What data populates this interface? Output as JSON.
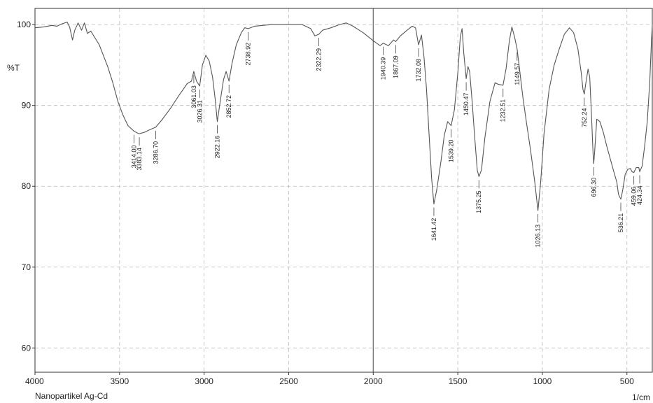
{
  "chart_data": {
    "type": "line",
    "ylabel": "%T",
    "xunit": "1/cm",
    "sample_label": "Nanopartikel Ag-Cd",
    "xlim": [
      4000,
      350
    ],
    "ylim": [
      57,
      102
    ],
    "xticks": [
      4000,
      3500,
      3000,
      2500,
      2000,
      1500,
      1000,
      500
    ],
    "yticks": [
      60,
      70,
      80,
      90,
      100
    ],
    "grid": true,
    "x_reversed": true,
    "colors": {
      "line": "#555555",
      "grid": "#bbbbbb",
      "axis": "#333333"
    },
    "series": [
      {
        "values": [
          [
            4000,
            99.6
          ],
          [
            3950,
            99.7
          ],
          [
            3900,
            99.9
          ],
          [
            3870,
            99.8
          ],
          [
            3840,
            100.1
          ],
          [
            3810,
            100.3
          ],
          [
            3795,
            99.7
          ],
          [
            3778,
            98.1
          ],
          [
            3765,
            99.3
          ],
          [
            3745,
            100.2
          ],
          [
            3725,
            99.3
          ],
          [
            3708,
            100.2
          ],
          [
            3690,
            98.9
          ],
          [
            3670,
            99.2
          ],
          [
            3650,
            98.5
          ],
          [
            3620,
            97.5
          ],
          [
            3600,
            96.4
          ],
          [
            3570,
            94.8
          ],
          [
            3540,
            92.8
          ],
          [
            3510,
            90.5
          ],
          [
            3480,
            88.8
          ],
          [
            3450,
            87.5
          ],
          [
            3414,
            86.8
          ],
          [
            3395,
            86.6
          ],
          [
            3383.14,
            86.5
          ],
          [
            3350,
            86.7
          ],
          [
            3320,
            87.0
          ],
          [
            3286.7,
            87.3
          ],
          [
            3250,
            88.2
          ],
          [
            3200,
            89.6
          ],
          [
            3150,
            91.2
          ],
          [
            3100,
            92.7
          ],
          [
            3075,
            93.0
          ],
          [
            3061.03,
            94.2
          ],
          [
            3045,
            93.0
          ],
          [
            3026.31,
            92.4
          ],
          [
            3010,
            95.0
          ],
          [
            2990,
            96.2
          ],
          [
            2970,
            95.5
          ],
          [
            2950,
            93.5
          ],
          [
            2935,
            90.8
          ],
          [
            2922.16,
            88.0
          ],
          [
            2905,
            90.5
          ],
          [
            2885,
            93.2
          ],
          [
            2870,
            94.2
          ],
          [
            2852.72,
            93.0
          ],
          [
            2835,
            95.2
          ],
          [
            2810,
            97.5
          ],
          [
            2780,
            99.0
          ],
          [
            2760,
            99.6
          ],
          [
            2738.92,
            99.5
          ],
          [
            2700,
            99.8
          ],
          [
            2600,
            100.0
          ],
          [
            2500,
            100.0
          ],
          [
            2420,
            100.0
          ],
          [
            2370,
            99.5
          ],
          [
            2345,
            98.6
          ],
          [
            2322.29,
            98.8
          ],
          [
            2300,
            99.3
          ],
          [
            2250,
            99.6
          ],
          [
            2200,
            100.0
          ],
          [
            2160,
            100.2
          ],
          [
            2120,
            99.8
          ],
          [
            2060,
            99.0
          ],
          [
            2000,
            98.0
          ],
          [
            1960,
            97.4
          ],
          [
            1940.39,
            97.7
          ],
          [
            1910,
            97.4
          ],
          [
            1880,
            98.1
          ],
          [
            1867.09,
            97.9
          ],
          [
            1840,
            98.6
          ],
          [
            1800,
            99.3
          ],
          [
            1770,
            99.8
          ],
          [
            1750,
            99.6
          ],
          [
            1732.08,
            97.5
          ],
          [
            1715,
            98.7
          ],
          [
            1700,
            96.0
          ],
          [
            1685,
            92.0
          ],
          [
            1670,
            86.5
          ],
          [
            1655,
            81.0
          ],
          [
            1641.42,
            77.8
          ],
          [
            1625,
            79.5
          ],
          [
            1600,
            83.0
          ],
          [
            1580,
            86.3
          ],
          [
            1560,
            88.0
          ],
          [
            1539.2,
            87.5
          ],
          [
            1520,
            89.5
          ],
          [
            1500,
            94.0
          ],
          [
            1485,
            98.5
          ],
          [
            1475,
            99.5
          ],
          [
            1465,
            96.5
          ],
          [
            1450.47,
            93.3
          ],
          [
            1440,
            94.8
          ],
          [
            1430,
            94.2
          ],
          [
            1415,
            90.5
          ],
          [
            1400,
            86.0
          ],
          [
            1385,
            82.0
          ],
          [
            1375.25,
            81.2
          ],
          [
            1360,
            82.0
          ],
          [
            1340,
            86.0
          ],
          [
            1310,
            90.5
          ],
          [
            1280,
            92.8
          ],
          [
            1260,
            92.6
          ],
          [
            1232.51,
            92.5
          ],
          [
            1215,
            94.5
          ],
          [
            1195,
            98.0
          ],
          [
            1180,
            99.7
          ],
          [
            1165,
            98.5
          ],
          [
            1149.57,
            97.0
          ],
          [
            1135,
            94.5
          ],
          [
            1115,
            91.0
          ],
          [
            1095,
            88.0
          ],
          [
            1070,
            84.5
          ],
          [
            1045,
            80.5
          ],
          [
            1026.13,
            77.0
          ],
          [
            1010,
            80.5
          ],
          [
            990,
            86.5
          ],
          [
            960,
            92.0
          ],
          [
            930,
            95.0
          ],
          [
            900,
            97.0
          ],
          [
            870,
            98.8
          ],
          [
            840,
            99.6
          ],
          [
            815,
            99.0
          ],
          [
            790,
            97.0
          ],
          [
            770,
            94.0
          ],
          [
            760,
            92.0
          ],
          [
            752.24,
            91.4
          ],
          [
            745,
            92.5
          ],
          [
            730,
            94.5
          ],
          [
            720,
            93.5
          ],
          [
            710,
            89.0
          ],
          [
            700,
            84.0
          ],
          [
            696.3,
            82.8
          ],
          [
            690,
            84.5
          ],
          [
            678,
            88.3
          ],
          [
            660,
            88.0
          ],
          [
            640,
            86.7
          ],
          [
            620,
            85.0
          ],
          [
            600,
            83.5
          ],
          [
            580,
            82.0
          ],
          [
            560,
            80.5
          ],
          [
            550,
            79.0
          ],
          [
            536.21,
            78.4
          ],
          [
            525,
            79.5
          ],
          [
            510,
            81.5
          ],
          [
            495,
            82.1
          ],
          [
            480,
            82.2
          ],
          [
            470,
            81.8
          ],
          [
            459.06,
            81.7
          ],
          [
            445,
            82.3
          ],
          [
            430,
            82.3
          ],
          [
            424.34,
            81.8
          ],
          [
            410,
            82.5
          ],
          [
            395,
            85.0
          ],
          [
            380,
            88.0
          ],
          [
            365,
            93.0
          ],
          [
            355,
            98.0
          ],
          [
            350,
            100.0
          ]
        ]
      }
    ],
    "peaks": [
      {
        "x": 3414.0,
        "label": "3414.00"
      },
      {
        "x": 3383.14,
        "label": "3383.14"
      },
      {
        "x": 3286.7,
        "label": "3286.70"
      },
      {
        "x": 3061.03,
        "label": "3061.03"
      },
      {
        "x": 3026.31,
        "label": "3026.31"
      },
      {
        "x": 2922.16,
        "label": "2922.16"
      },
      {
        "x": 2852.72,
        "label": "2852.72"
      },
      {
        "x": 2738.92,
        "label": "2738.92"
      },
      {
        "x": 2322.29,
        "label": "2322.29"
      },
      {
        "x": 1940.39,
        "label": "1940.39"
      },
      {
        "x": 1867.09,
        "label": "1867.09"
      },
      {
        "x": 1732.08,
        "label": "1732.08"
      },
      {
        "x": 1641.42,
        "label": "1641.42"
      },
      {
        "x": 1539.2,
        "label": "1539.20"
      },
      {
        "x": 1450.47,
        "label": "1450.47"
      },
      {
        "x": 1375.25,
        "label": "1375.25"
      },
      {
        "x": 1232.51,
        "label": "1232.51"
      },
      {
        "x": 1149.57,
        "label": "1149.57"
      },
      {
        "x": 1026.13,
        "label": "1026.13"
      },
      {
        "x": 752.24,
        "label": "752.24"
      },
      {
        "x": 696.3,
        "label": "696.30"
      },
      {
        "x": 536.21,
        "label": "536.21"
      },
      {
        "x": 459.06,
        "label": "459.06"
      },
      {
        "x": 424.34,
        "label": "424.34"
      }
    ]
  }
}
